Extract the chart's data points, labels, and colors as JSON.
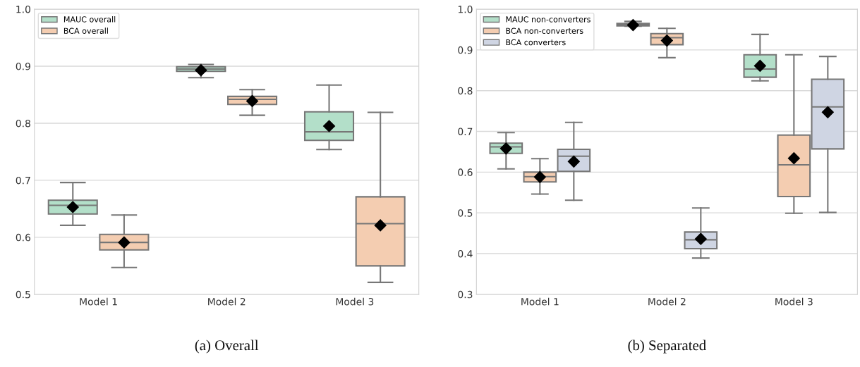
{
  "chart_data": [
    {
      "type": "box",
      "categories": [
        "Model 1",
        "Model 2",
        "Model 3"
      ],
      "ylim": [
        0.5,
        1.0
      ],
      "yticks": [
        0.5,
        0.6,
        0.7,
        0.8,
        0.9,
        {
          "value": 1,
          "label": "1.0"
        }
      ],
      "grid": "y",
      "legend": "top left",
      "marker": "diamond",
      "annotations": [
        "(a) Overall"
      ],
      "series": [
        {
          "name": "MAUC overall",
          "color": "#b3dfc9",
          "boxes": [
            {
              "low": 0.621,
              "q1": 0.641,
              "median": 0.656,
              "q3": 0.665,
              "high": 0.696,
              "mean": 0.653
            },
            {
              "low": 0.88,
              "q1": 0.891,
              "median": 0.895,
              "q3": 0.899,
              "high": 0.903,
              "mean": 0.893
            },
            {
              "low": 0.754,
              "q1": 0.77,
              "median": 0.785,
              "q3": 0.82,
              "high": 0.867,
              "mean": 0.795
            }
          ]
        },
        {
          "name": "BCA overall",
          "color": "#f4cdb1",
          "boxes": [
            {
              "low": 0.547,
              "q1": 0.578,
              "median": 0.591,
              "q3": 0.605,
              "high": 0.639,
              "mean": 0.591
            },
            {
              "low": 0.814,
              "q1": 0.833,
              "median": 0.842,
              "q3": 0.847,
              "high": 0.859,
              "mean": 0.839
            },
            {
              "low": 0.521,
              "q1": 0.55,
              "median": 0.624,
              "q3": 0.671,
              "high": 0.819,
              "mean": 0.621
            }
          ]
        }
      ]
    },
    {
      "type": "box",
      "categories": [
        "Model 1",
        "Model 2",
        "Model 3"
      ],
      "ylim": [
        0.3,
        1.0
      ],
      "yticks": [
        0.3,
        0.4,
        0.5,
        0.6,
        0.7,
        0.8,
        0.9,
        {
          "value": 1,
          "label": "1.0"
        }
      ],
      "grid": "y",
      "legend": "top left",
      "marker": "diamond",
      "annotations": [
        "(b) Separated"
      ],
      "series": [
        {
          "name": "MAUC non-converters",
          "color": "#b3dfc9",
          "boxes": [
            {
              "low": 0.608,
              "q1": 0.646,
              "median": 0.662,
              "q3": 0.671,
              "high": 0.697,
              "mean": 0.658
            },
            {
              "low": 0.958,
              "q1": 0.959,
              "median": 0.962,
              "q3": 0.965,
              "high": 0.97,
              "mean": 0.961
            },
            {
              "low": 0.824,
              "q1": 0.833,
              "median": 0.853,
              "q3": 0.888,
              "high": 0.938,
              "mean": 0.861
            }
          ]
        },
        {
          "name": "BCA non-converters",
          "color": "#f4cdb1",
          "boxes": [
            {
              "low": 0.546,
              "q1": 0.576,
              "median": 0.589,
              "q3": 0.6,
              "high": 0.633,
              "mean": 0.588
            },
            {
              "low": 0.881,
              "q1": 0.913,
              "median": 0.93,
              "q3": 0.94,
              "high": 0.953,
              "mean": 0.923
            },
            {
              "low": 0.499,
              "q1": 0.54,
              "median": 0.618,
              "q3": 0.691,
              "high": 0.888,
              "mean": 0.634
            }
          ]
        },
        {
          "name": "BCA converters",
          "color": "#cfd5e3",
          "boxes": [
            {
              "low": 0.531,
              "q1": 0.602,
              "median": 0.639,
              "q3": 0.656,
              "high": 0.722,
              "mean": 0.626
            },
            {
              "low": 0.389,
              "q1": 0.412,
              "median": 0.434,
              "q3": 0.453,
              "high": 0.512,
              "mean": 0.436
            },
            {
              "low": 0.501,
              "q1": 0.657,
              "median": 0.76,
              "q3": 0.828,
              "high": 0.884,
              "mean": 0.747
            }
          ]
        }
      ]
    }
  ]
}
